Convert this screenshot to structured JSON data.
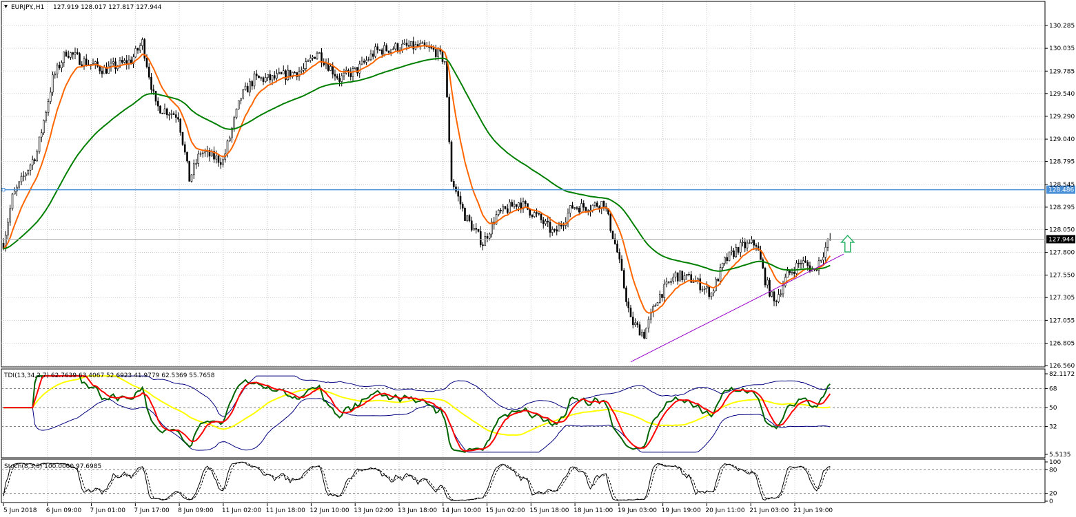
{
  "header": {
    "symbol_label": "EURJPY.,H1",
    "ohlc_text": "127.919 128.017 127.817 127.944"
  },
  "chart_data": [
    {
      "type": "candlestick",
      "title": "EURJPY.,H1 127.919 128.017 127.817 127.944",
      "ylim": [
        126.56,
        130.285
      ],
      "y_ticks": [
        "130.285",
        "130.035",
        "129.785",
        "129.540",
        "129.290",
        "129.040",
        "128.795",
        "128.545",
        "128.295",
        "128.050",
        "127.800",
        "127.550",
        "127.305",
        "127.055",
        "126.805",
        "126.560"
      ],
      "x_ticks": [
        "5 Jun 2018",
        "6 Jun 09:00",
        "7 Jun 01:00",
        "7 Jun 17:00",
        "8 Jun 09:00",
        "11 Jun 02:00",
        "11 Jun 18:00",
        "12 Jun 10:00",
        "13 Jun 02:00",
        "13 Jun 18:00",
        "14 Jun 10:00",
        "15 Jun 02:00",
        "15 Jun 18:00",
        "18 Jun 11:00",
        "19 Jun 03:00",
        "19 Jun 19:00",
        "20 Jun 11:00",
        "21 Jun 03:00",
        "21 Jun 19:00"
      ],
      "path_points": [
        {
          "bar": 0,
          "price": 127.9
        },
        {
          "bar": 4,
          "price": 128.4
        },
        {
          "bar": 15,
          "price": 128.9
        },
        {
          "bar": 22,
          "price": 129.7
        },
        {
          "bar": 28,
          "price": 130.0
        },
        {
          "bar": 35,
          "price": 129.9
        },
        {
          "bar": 45,
          "price": 129.8
        },
        {
          "bar": 57,
          "price": 129.9
        },
        {
          "bar": 62,
          "price": 130.1
        },
        {
          "bar": 68,
          "price": 129.4
        },
        {
          "bar": 78,
          "price": 129.3
        },
        {
          "bar": 83,
          "price": 128.6
        },
        {
          "bar": 88,
          "price": 128.9
        },
        {
          "bar": 98,
          "price": 128.8
        },
        {
          "bar": 106,
          "price": 129.5
        },
        {
          "bar": 112,
          "price": 129.7
        },
        {
          "bar": 120,
          "price": 129.7
        },
        {
          "bar": 134,
          "price": 129.8
        },
        {
          "bar": 140,
          "price": 130.0
        },
        {
          "bar": 150,
          "price": 129.7
        },
        {
          "bar": 158,
          "price": 129.8
        },
        {
          "bar": 166,
          "price": 130.0
        },
        {
          "bar": 176,
          "price": 130.05
        },
        {
          "bar": 186,
          "price": 130.05
        },
        {
          "bar": 193,
          "price": 130.0
        },
        {
          "bar": 197,
          "price": 129.9
        },
        {
          "bar": 200,
          "price": 128.6
        },
        {
          "bar": 206,
          "price": 128.2
        },
        {
          "bar": 214,
          "price": 127.9
        },
        {
          "bar": 220,
          "price": 128.2
        },
        {
          "bar": 230,
          "price": 128.35
        },
        {
          "bar": 238,
          "price": 128.2
        },
        {
          "bar": 246,
          "price": 128.0
        },
        {
          "bar": 254,
          "price": 128.3
        },
        {
          "bar": 262,
          "price": 128.3
        },
        {
          "bar": 268,
          "price": 128.35
        },
        {
          "bar": 274,
          "price": 127.8
        },
        {
          "bar": 280,
          "price": 127.05
        },
        {
          "bar": 286,
          "price": 126.9
        },
        {
          "bar": 292,
          "price": 127.3
        },
        {
          "bar": 300,
          "price": 127.55
        },
        {
          "bar": 308,
          "price": 127.5
        },
        {
          "bar": 316,
          "price": 127.35
        },
        {
          "bar": 322,
          "price": 127.7
        },
        {
          "bar": 328,
          "price": 127.85
        },
        {
          "bar": 336,
          "price": 127.9
        },
        {
          "bar": 340,
          "price": 127.5
        },
        {
          "bar": 344,
          "price": 127.25
        },
        {
          "bar": 350,
          "price": 127.55
        },
        {
          "bar": 356,
          "price": 127.7
        },
        {
          "bar": 362,
          "price": 127.6
        },
        {
          "bar": 366,
          "price": 127.8
        },
        {
          "bar": 369,
          "price": 127.95
        }
      ],
      "series": [
        {
          "name": "",
          "color": "#ff6600",
          "kind": "moving-average",
          "period": 12
        },
        {
          "name": "",
          "color": "#008000",
          "kind": "moving-average",
          "period": 60
        }
      ],
      "horizontal_line": {
        "value": 128.486,
        "label": "128.486",
        "color": "#4a90d9"
      },
      "current_price": {
        "value": 127.944,
        "label": "127.944"
      },
      "trendline": {
        "color": "#9900cc",
        "from": {
          "bar": 280,
          "price": 126.6
        },
        "to": {
          "bar": 375,
          "price": 127.78
        }
      },
      "arrow": {
        "direction": "up",
        "color": "#2fb56a",
        "at_bar": 375,
        "price": 128.0
      }
    },
    {
      "type": "line",
      "title": "TDI(13,34,2,7) 62.7639 63.4067 52.6923 41.9779 62.5369 55.7658",
      "ylim": [
        5.5135,
        82.1172
      ],
      "y_ticks": [
        "82.1172",
        "68",
        "50",
        "32",
        "5.5135"
      ],
      "levels": [
        68,
        50,
        32
      ],
      "series": [
        {
          "name": "",
          "color": "#00007f",
          "kind": "upper band"
        },
        {
          "name": "",
          "color": "#00007f",
          "kind": "lower band"
        },
        {
          "name": "",
          "color": "#ffff00",
          "kind": "market base line"
        },
        {
          "name": "",
          "color": "#006400",
          "kind": "price line"
        },
        {
          "name": "",
          "color": "#ff0000",
          "kind": "signal line"
        }
      ]
    },
    {
      "type": "line",
      "title": "Stoch(8,3,3) 100.0000 97.6985",
      "ylim": [
        0,
        100
      ],
      "y_ticks": [
        "100",
        "80",
        "20",
        "0"
      ],
      "levels": [
        80,
        20
      ],
      "series": [
        {
          "name": "",
          "color": "#000000",
          "kind": "main",
          "style": "solid"
        },
        {
          "name": "",
          "color": "#000000",
          "kind": "signal",
          "style": "dashed"
        }
      ]
    }
  ]
}
